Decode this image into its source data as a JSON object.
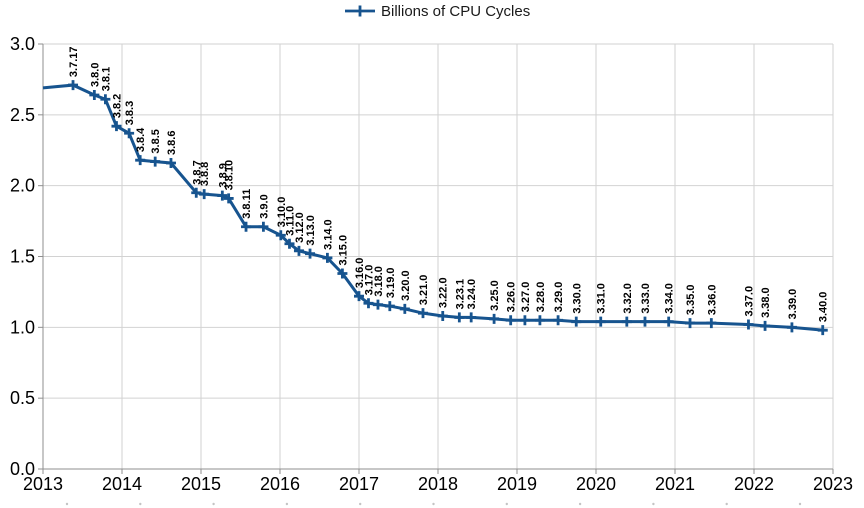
{
  "legend": {
    "label": "Billions of CPU Cycles"
  },
  "colors": {
    "series": "#17548F",
    "axis": "#8f8f8f",
    "grid": "#d2d2d2",
    "text": "#000000",
    "background": "#ffffff",
    "bottom_marks": "#c4c4c4"
  },
  "chart_data": {
    "type": "line",
    "title": "",
    "xlabel": "",
    "ylabel": "",
    "xlim": [
      2013,
      2023
    ],
    "ylim": [
      0,
      3
    ],
    "x_ticks": [
      "2013",
      "2014",
      "2015",
      "2016",
      "2017",
      "2018",
      "2019",
      "2020",
      "2021",
      "2022",
      "2023"
    ],
    "x_tick_values": [
      2013,
      2014,
      2015,
      2016,
      2017,
      2018,
      2019,
      2020,
      2021,
      2022,
      2023
    ],
    "y_ticks": [
      "3.0",
      "2.5",
      "2.0",
      "1.5",
      "1.0",
      "0.5",
      "0.0"
    ],
    "y_tick_values": [
      3.0,
      2.5,
      2.0,
      1.5,
      1.0,
      0.5,
      0.0
    ],
    "grid": true,
    "legend_position": "top-center",
    "marker": "plus",
    "point_labels_rotated": true,
    "series": [
      {
        "name": "Billions of CPU Cycles",
        "points": [
          [
            "",
            2013.0,
            2.69
          ],
          [
            "3.7.17",
            2013.38,
            2.71
          ],
          [
            "3.8.0",
            2013.65,
            2.64
          ],
          [
            "3.8.1",
            2013.79,
            2.61
          ],
          [
            "3.8.2",
            2013.93,
            2.42
          ],
          [
            "3.8.3",
            2014.09,
            2.37
          ],
          [
            "3.8.4",
            2014.23,
            2.18
          ],
          [
            "3.8.5",
            2014.42,
            2.17
          ],
          [
            "3.8.6",
            2014.62,
            2.16
          ],
          [
            "3.8.7",
            2014.94,
            1.95
          ],
          [
            "3.8.8",
            2015.04,
            1.94
          ],
          [
            "3.8.9",
            2015.27,
            1.93
          ],
          [
            "3.8.10",
            2015.35,
            1.91
          ],
          [
            "3.8.11",
            2015.57,
            1.71
          ],
          [
            "3.9.0",
            2015.79,
            1.71
          ],
          [
            "3.10.0",
            2016.01,
            1.65
          ],
          [
            "3.11.0",
            2016.12,
            1.59
          ],
          [
            "3.12.0",
            2016.24,
            1.54
          ],
          [
            "3.13.0",
            2016.38,
            1.52
          ],
          [
            "3.14.0",
            2016.6,
            1.49
          ],
          [
            "3.15.0",
            2016.79,
            1.38
          ],
          [
            "3.16.0",
            2017.0,
            1.22
          ],
          [
            "3.17.0",
            2017.12,
            1.17
          ],
          [
            "3.18.0",
            2017.24,
            1.16
          ],
          [
            "3.19.0",
            2017.39,
            1.15
          ],
          [
            "3.20.0",
            2017.58,
            1.13
          ],
          [
            "3.21.0",
            2017.81,
            1.1
          ],
          [
            "3.22.0",
            2018.06,
            1.08
          ],
          [
            "3.23.1",
            2018.27,
            1.07
          ],
          [
            "3.24.0",
            2018.42,
            1.07
          ],
          [
            "3.25.0",
            2018.71,
            1.06
          ],
          [
            "3.26.0",
            2018.92,
            1.05
          ],
          [
            "3.27.0",
            2019.1,
            1.05
          ],
          [
            "3.28.0",
            2019.29,
            1.05
          ],
          [
            "3.29.0",
            2019.52,
            1.05
          ],
          [
            "3.30.0",
            2019.75,
            1.04
          ],
          [
            "3.31.0",
            2020.06,
            1.04
          ],
          [
            "3.32.0",
            2020.39,
            1.04
          ],
          [
            "3.33.0",
            2020.62,
            1.04
          ],
          [
            "3.34.0",
            2020.92,
            1.04
          ],
          [
            "3.35.0",
            2021.19,
            1.03
          ],
          [
            "3.36.0",
            2021.46,
            1.03
          ],
          [
            "3.37.0",
            2021.93,
            1.02
          ],
          [
            "3.38.0",
            2022.14,
            1.01
          ],
          [
            "3.39.0",
            2022.48,
            1.0
          ],
          [
            "3.40.0",
            2022.87,
            0.98
          ]
        ]
      }
    ]
  }
}
